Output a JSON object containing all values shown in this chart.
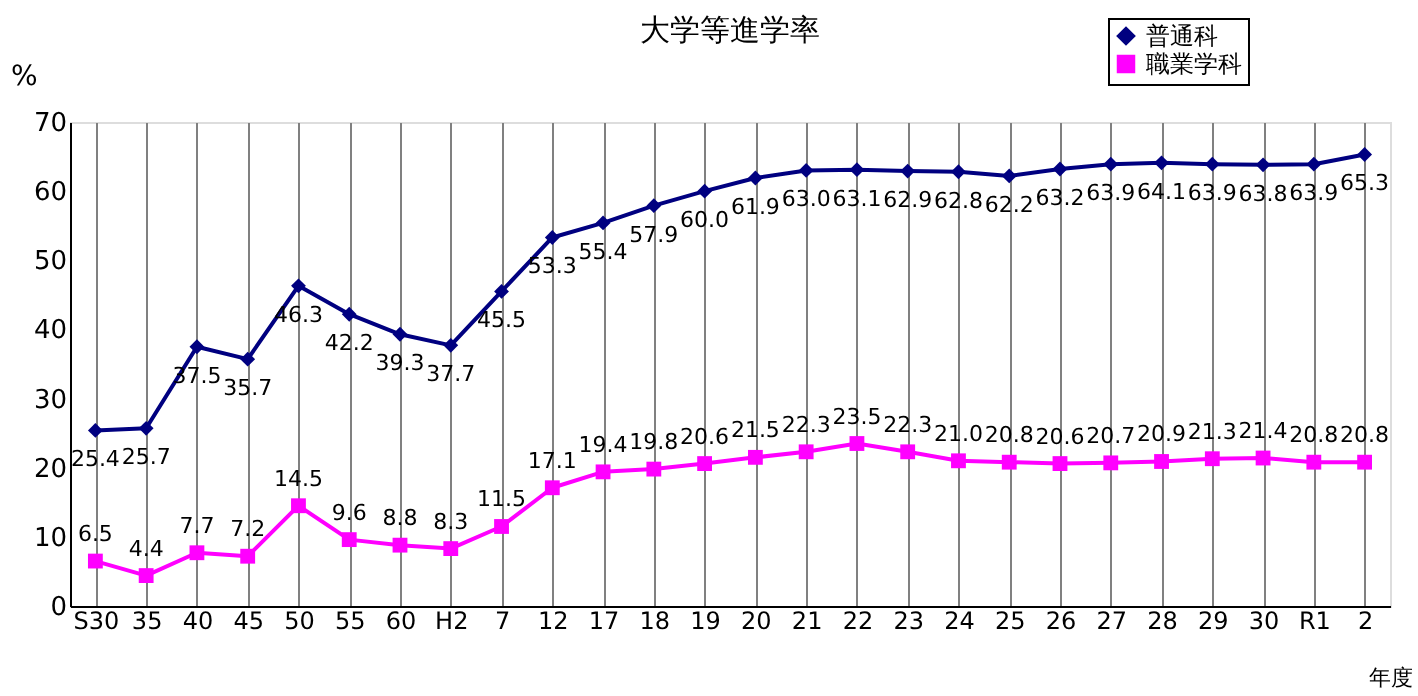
{
  "chart_data": {
    "type": "line",
    "title": "大学等進学率",
    "ylabel": "%",
    "xlabel": "年度",
    "categories": [
      "S30",
      "35",
      "40",
      "45",
      "50",
      "55",
      "60",
      "H2",
      "7",
      "12",
      "17",
      "18",
      "19",
      "20",
      "21",
      "22",
      "23",
      "24",
      "25",
      "26",
      "27",
      "28",
      "29",
      "30",
      "R1",
      "2"
    ],
    "series": [
      {
        "name": "普通科",
        "color": "#000080",
        "marker": "diamond",
        "values": [
          25.4,
          25.7,
          37.5,
          35.7,
          46.3,
          42.2,
          39.3,
          37.7,
          45.5,
          53.3,
          55.4,
          57.9,
          60.0,
          61.9,
          63.0,
          63.1,
          62.9,
          62.8,
          62.2,
          63.2,
          63.9,
          64.1,
          63.9,
          63.8,
          63.9,
          65.3
        ],
        "value_labels": [
          "25.4",
          "25.7",
          "37.5",
          "35.7",
          "46.3",
          "42.2",
          "39.3",
          "37.7",
          "45.5",
          "53.3",
          "55.4",
          "57.9",
          "60.0",
          "61.9",
          "63.0",
          "63.1",
          "62.9",
          "62.8",
          "62.2",
          "63.2",
          "63.9",
          "64.1",
          "63.9",
          "63.8",
          "63.9",
          "65.3"
        ]
      },
      {
        "name": "職業学科",
        "color": "#ff00ff",
        "marker": "square",
        "values": [
          6.5,
          4.4,
          7.7,
          7.2,
          14.5,
          9.6,
          8.8,
          8.3,
          11.5,
          17.1,
          19.4,
          19.8,
          20.6,
          21.5,
          22.3,
          23.5,
          22.3,
          21.0,
          20.8,
          20.6,
          20.7,
          20.9,
          21.3,
          21.4,
          20.8,
          20.8
        ],
        "value_labels": [
          "6.5",
          "4.4",
          "7.7",
          "7.2",
          "14.5",
          "9.6",
          "8.8",
          "8.3",
          "11.5",
          "17.1",
          "19.4",
          "19.8",
          "20.6",
          "21.5",
          "22.3",
          "23.5",
          "22.3",
          "21.0",
          "20.8",
          "20.6",
          "20.7",
          "20.9",
          "21.3",
          "21.4",
          "20.8",
          "20.8"
        ]
      }
    ],
    "ylim": [
      0,
      70
    ],
    "yticks": [
      0,
      10,
      20,
      30,
      40,
      50,
      60,
      70
    ],
    "grid": "x",
    "legend": "top right",
    "line_style": "solid"
  }
}
